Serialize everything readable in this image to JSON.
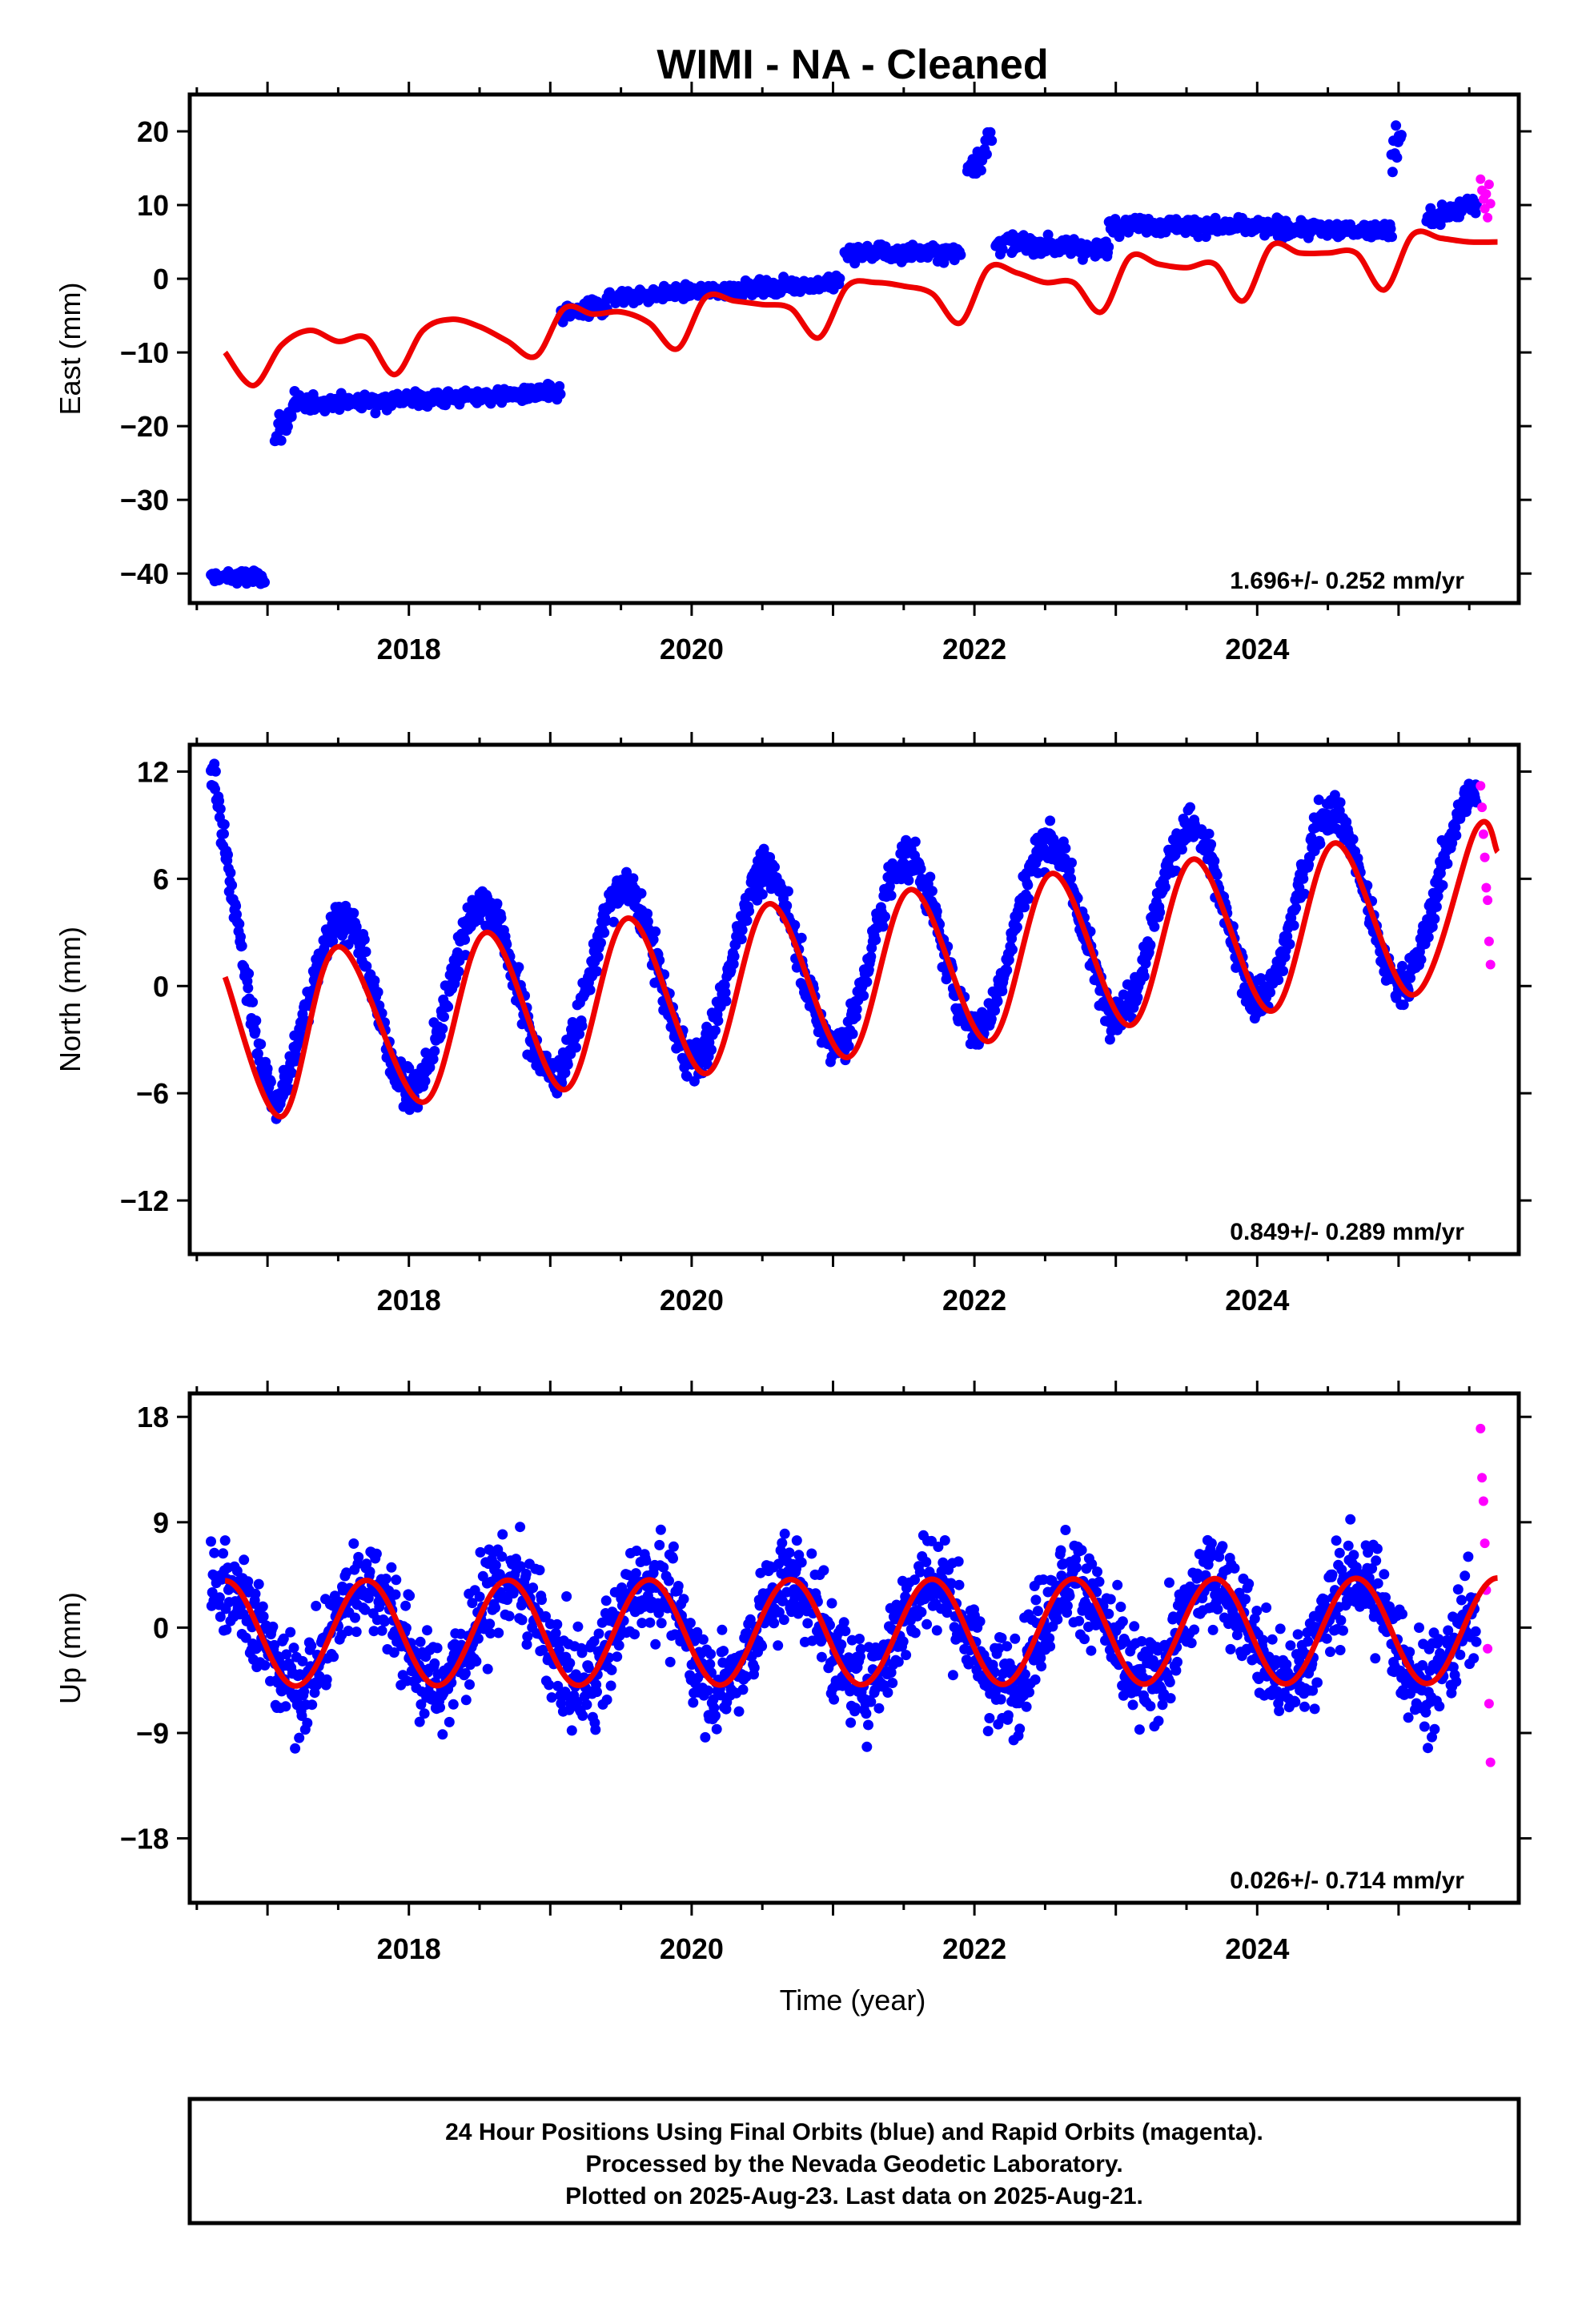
{
  "chart_data": [
    {
      "type": "scatter",
      "title": "WIMI  - NA - Cleaned",
      "ylabel": "East (mm)",
      "xlabel": "",
      "xlim": [
        2016.45,
        2025.85
      ],
      "ylim": [
        -44,
        25
      ],
      "x_ticks": [
        2018,
        2020,
        2022,
        2024
      ],
      "y_ticks": [
        -40,
        -30,
        -20,
        -10,
        0,
        10,
        20
      ],
      "rate_label": "1.696+/- 0.252 mm/yr",
      "series": [
        {
          "name": "Final Orbits",
          "color": "#0000ff",
          "kind": "points",
          "description_points": "piecewise",
          "segments": [
            {
              "x": [
                2016.6,
                2016.98
              ],
              "y": [
                -40.5,
                -40.5
              ],
              "spread": 1.2
            },
            {
              "x": [
                2017.05,
                2017.2
              ],
              "y": [
                -22,
                -17
              ],
              "spread": 2.5
            },
            {
              "x": [
                2017.2,
                2019.07
              ],
              "y": [
                -17,
                -15.5
              ],
              "spread": 1.3
            },
            {
              "x": [
                2019.07,
                2019.4
              ],
              "y": [
                -5,
                -3.5
              ],
              "spread": 1.5
            },
            {
              "x": [
                2019.4,
                2021.05
              ],
              "y": [
                -2.5,
                -0.5
              ],
              "spread": 1.1
            },
            {
              "x": [
                2021.08,
                2021.9
              ],
              "y": [
                3.5,
                3.5
              ],
              "spread": 1.4
            },
            {
              "x": [
                2021.95,
                2022.12
              ],
              "y": [
                15,
                19
              ],
              "spread": 3
            },
            {
              "x": [
                2022.15,
                2022.95
              ],
              "y": [
                5,
                4
              ],
              "spread": 1.5
            },
            {
              "x": [
                2022.95,
                2024.95
              ],
              "y": [
                7.5,
                6.5
              ],
              "spread": 1.3
            },
            {
              "x": [
                2024.95,
                2025.02
              ],
              "y": [
                16,
                20
              ],
              "spread": 3
            },
            {
              "x": [
                2025.2,
                2025.55
              ],
              "y": [
                8,
                10
              ],
              "spread": 1.5
            }
          ]
        },
        {
          "name": "Rapid Orbits",
          "color": "#ff00ff",
          "kind": "points",
          "x": [
            2025.58,
            2025.59,
            2025.6,
            2025.61,
            2025.62,
            2025.63,
            2025.64,
            2025.65
          ],
          "y": [
            13.5,
            12,
            10.8,
            9.5,
            11.5,
            8.3,
            12.8,
            10.2
          ]
        },
        {
          "name": "Model",
          "color": "#ee0000",
          "kind": "line",
          "x": [
            2016.7,
            2016.9,
            2017.1,
            2017.3,
            2017.5,
            2017.7,
            2017.9,
            2018.1,
            2018.3,
            2018.5,
            2018.7,
            2018.9,
            2019.1,
            2019.3,
            2019.5,
            2019.7,
            2019.9,
            2020.1,
            2020.3,
            2020.5,
            2020.7,
            2020.9,
            2021.1,
            2021.3,
            2021.5,
            2021.7,
            2021.9,
            2022.1,
            2022.3,
            2022.5,
            2022.7,
            2022.9,
            2023.1,
            2023.3,
            2023.5,
            2023.7,
            2023.9,
            2024.1,
            2024.3,
            2024.5,
            2024.7,
            2024.9,
            2025.1,
            2025.3,
            2025.5,
            2025.7
          ],
          "y": [
            -10,
            -14.5,
            -9,
            -7,
            -8.5,
            -8,
            -13,
            -7,
            -5.5,
            -6.5,
            -8.5,
            -10.5,
            -4,
            -4.8,
            -4.5,
            -6,
            -9.5,
            -2.5,
            -3,
            -3.5,
            -4,
            -8,
            -1,
            -0.5,
            -1,
            -2,
            -6,
            1.5,
            0.8,
            -0.5,
            -0.5,
            -4.5,
            3,
            2,
            1.5,
            2,
            -3,
            4.5,
            3.5,
            3.5,
            3.5,
            -1.5,
            6,
            5.5,
            5,
            5
          ]
        }
      ]
    },
    {
      "type": "scatter",
      "title": "",
      "ylabel": "North (mm)",
      "xlabel": "",
      "xlim": [
        2016.45,
        2025.85
      ],
      "ylim": [
        -15,
        13.5
      ],
      "x_ticks": [
        2018,
        2020,
        2022,
        2024
      ],
      "y_ticks": [
        -12,
        -6,
        0,
        6,
        12
      ],
      "rate_label": "0.849+/- 0.289 mm/yr",
      "seasonal": {
        "amplitude": 5.0,
        "peak_phase": 0.52,
        "trend_start": -2.0,
        "trend_slope": 0.85,
        "noise": 1.3
      },
      "series": [
        {
          "name": "Final Orbits",
          "color": "#0000ff",
          "kind": "points",
          "x_range": [
            2016.6,
            2025.55
          ]
        },
        {
          "name": "Rapid Orbits",
          "color": "#ff00ff",
          "kind": "points",
          "x": [
            2025.58,
            2025.59,
            2025.6,
            2025.61,
            2025.62,
            2025.63,
            2025.64,
            2025.65
          ],
          "y": [
            11.2,
            10,
            8.5,
            7.2,
            5.5,
            4.8,
            2.5,
            1.2
          ]
        },
        {
          "name": "Model",
          "color": "#ee0000",
          "kind": "line",
          "x": [
            2016.7,
            2017.1,
            2017.5,
            2018.1,
            2018.55,
            2019.1,
            2019.55,
            2020.1,
            2020.55,
            2021.1,
            2021.55,
            2022.1,
            2022.55,
            2023.1,
            2023.55,
            2024.1,
            2024.55,
            2025.1,
            2025.55,
            2025.7
          ],
          "y": [
            0.5,
            -7.3,
            2.2,
            -6.5,
            3,
            -5.8,
            3.8,
            -4.9,
            4.6,
            -4,
            5.4,
            -3.1,
            6.3,
            -2.2,
            7.1,
            -1.4,
            8,
            -0.5,
            8.8,
            7.5
          ]
        }
      ]
    },
    {
      "type": "scatter",
      "title": "",
      "ylabel": "Up (mm)",
      "xlabel": "Time (year)",
      "xlim": [
        2016.45,
        2025.85
      ],
      "ylim": [
        -23.5,
        20
      ],
      "x_ticks": [
        2018,
        2020,
        2022,
        2024
      ],
      "y_ticks": [
        -18,
        -9,
        0,
        9,
        18
      ],
      "rate_label": "0.026+/- 0.714 mm/yr",
      "seasonal": {
        "amplitude": 4.5,
        "peak_phase": 0.7,
        "trend_start": -0.5,
        "trend_slope": 0.026,
        "noise": 4.8
      },
      "series": [
        {
          "name": "Final Orbits",
          "color": "#0000ff",
          "kind": "points",
          "x_range": [
            2016.6,
            2025.55
          ]
        },
        {
          "name": "Rapid Orbits",
          "color": "#ff00ff",
          "kind": "points",
          "x": [
            2025.58,
            2025.59,
            2025.6,
            2025.61,
            2025.62,
            2025.63,
            2025.64,
            2025.65
          ],
          "y": [
            17,
            12.8,
            10.8,
            7.2,
            3.2,
            -1.8,
            -6.5,
            -11.5
          ]
        },
        {
          "name": "Model",
          "color": "#ee0000",
          "kind": "line",
          "model": "seasonal"
        }
      ]
    }
  ],
  "footer": {
    "line1": "24 Hour Positions Using Final Orbits (blue) and Rapid Orbits (magenta).",
    "line2": "Processed by the Nevada Geodetic Laboratory.",
    "line3": "Plotted on 2025-Aug-23. Last data on 2025-Aug-21."
  }
}
